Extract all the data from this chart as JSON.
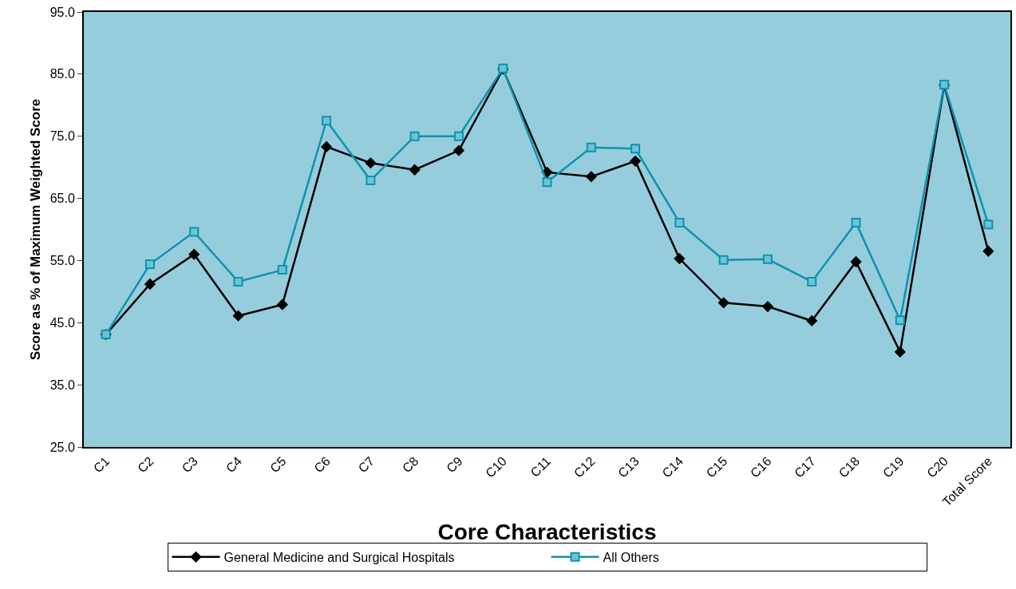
{
  "chart_data": {
    "type": "line",
    "xlabel": "Core Characteristics",
    "ylabel": "Score as % of Maximum Weighted Score",
    "categories": [
      "C1",
      "C2",
      "C3",
      "C4",
      "C5",
      "C6",
      "C7",
      "C8",
      "C9",
      "C10",
      "C11",
      "C12",
      "C13",
      "C14",
      "C15",
      "C16",
      "C17",
      "C18",
      "C19",
      "C20",
      "Total Score"
    ],
    "series": [
      {
        "name": "General Medicine and Surgical Hospitals",
        "color": "#000000",
        "marker": "diamond",
        "values": [
          43.1,
          51.2,
          56.0,
          46.1,
          47.9,
          73.3,
          70.7,
          69.6,
          72.7,
          85.8,
          69.2,
          68.5,
          71.0,
          55.3,
          48.2,
          47.6,
          45.3,
          54.8,
          40.3,
          83.2,
          56.5
        ]
      },
      {
        "name": "All Others",
        "color": "#0e93ad",
        "marker": "square",
        "values": [
          43.1,
          54.4,
          59.6,
          51.6,
          53.5,
          77.5,
          67.9,
          75.0,
          75.0,
          85.9,
          67.6,
          73.2,
          73.0,
          61.1,
          55.1,
          55.2,
          51.6,
          61.1,
          45.4,
          83.3,
          60.8
        ]
      }
    ],
    "ylim": [
      25,
      95
    ],
    "yticks": [
      {
        "value": 25,
        "label": "25.0"
      },
      {
        "value": 35,
        "label": "35.0"
      },
      {
        "value": 45,
        "label": "45.0"
      },
      {
        "value": 55,
        "label": "55.0"
      },
      {
        "value": 65,
        "label": "65.0"
      },
      {
        "value": 75,
        "label": "75.0"
      },
      {
        "value": 85,
        "label": "85.0"
      },
      {
        "value": 95,
        "label": "95.0"
      }
    ],
    "grid": false,
    "legend": "bottom",
    "line_style": "solid"
  }
}
